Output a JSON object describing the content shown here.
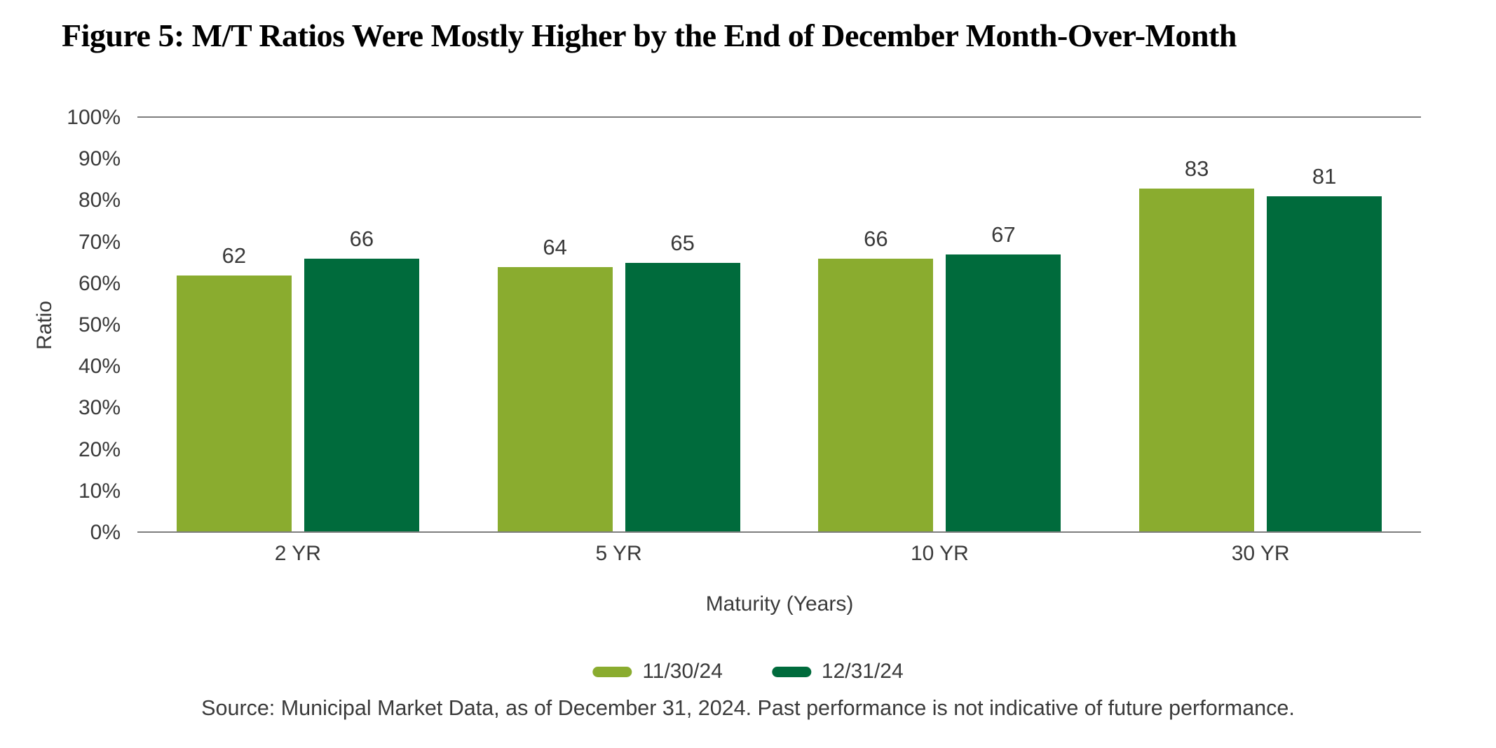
{
  "chart_data": {
    "type": "bar",
    "title": "Figure 5: M/T Ratios Were Mostly Higher by the End of December Month-Over-Month",
    "categories": [
      "2 YR",
      "5 YR",
      "10 YR",
      "30 YR"
    ],
    "series": [
      {
        "name": "11/30/24",
        "color": "#8AAC2F",
        "values": [
          62,
          64,
          66,
          83
        ]
      },
      {
        "name": "12/31/24",
        "color": "#006B3C",
        "values": [
          66,
          65,
          67,
          81
        ]
      }
    ],
    "xlabel": "Maturity (Years)",
    "ylabel": "Ratio",
    "ylim": [
      0,
      100
    ],
    "yticks": [
      "0%",
      "10%",
      "20%",
      "30%",
      "40%",
      "50%",
      "60%",
      "70%",
      "80%",
      "90%",
      "100%"
    ],
    "value_labels": true,
    "grid": "single horizontal gridline at 100% plus baseline at 0%",
    "legend_position": "bottom-center"
  },
  "footer": {
    "source_note": "Source: Municipal Market Data, as of December 31, 2024. Past performance is not indicative of future performance."
  },
  "colors": {
    "series_light_green": "#8AAC2F",
    "series_dark_green": "#006B3C",
    "axis_line": "#7D7D7D",
    "label_text": "#3A3A3A",
    "title_text": "#000000",
    "background": "#FFFFFF"
  }
}
